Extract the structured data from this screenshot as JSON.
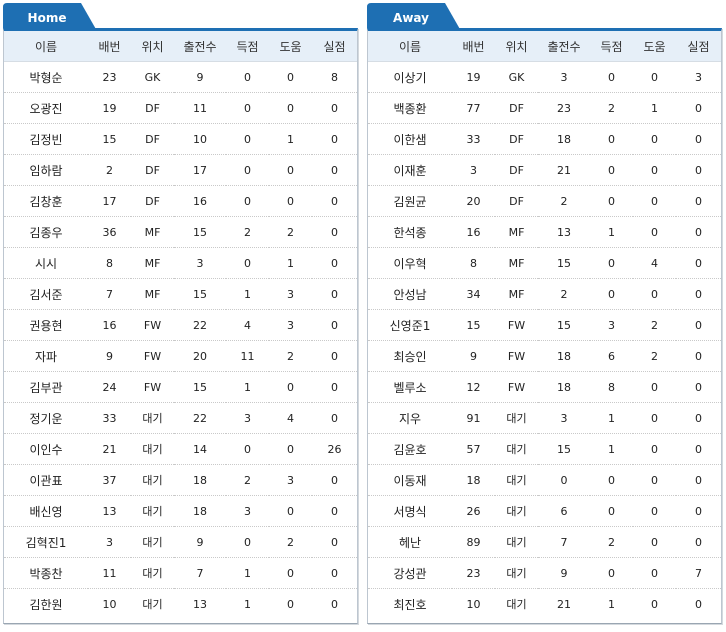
{
  "columns": [
    "이름",
    "배번",
    "위치",
    "출전수",
    "득점",
    "도움",
    "실점"
  ],
  "colors": {
    "tab_blue": "#1e6fb3",
    "header_bg": "#e6eff8"
  },
  "home": {
    "tab_label": "Home",
    "players": [
      [
        "박형순",
        "23",
        "GK",
        "9",
        "0",
        "0",
        "8"
      ],
      [
        "오광진",
        "19",
        "DF",
        "11",
        "0",
        "0",
        "0"
      ],
      [
        "김정빈",
        "15",
        "DF",
        "10",
        "0",
        "1",
        "0"
      ],
      [
        "임하람",
        "2",
        "DF",
        "17",
        "0",
        "0",
        "0"
      ],
      [
        "김창훈",
        "17",
        "DF",
        "16",
        "0",
        "0",
        "0"
      ],
      [
        "김종우",
        "36",
        "MF",
        "15",
        "2",
        "2",
        "0"
      ],
      [
        "시시",
        "8",
        "MF",
        "3",
        "0",
        "1",
        "0"
      ],
      [
        "김서준",
        "7",
        "MF",
        "15",
        "1",
        "3",
        "0"
      ],
      [
        "권용현",
        "16",
        "FW",
        "22",
        "4",
        "3",
        "0"
      ],
      [
        "자파",
        "9",
        "FW",
        "20",
        "11",
        "2",
        "0"
      ],
      [
        "김부관",
        "24",
        "FW",
        "15",
        "1",
        "0",
        "0"
      ],
      [
        "정기운",
        "33",
        "대기",
        "22",
        "3",
        "4",
        "0"
      ],
      [
        "이인수",
        "21",
        "대기",
        "14",
        "0",
        "0",
        "26"
      ],
      [
        "이관표",
        "37",
        "대기",
        "18",
        "2",
        "3",
        "0"
      ],
      [
        "배신영",
        "13",
        "대기",
        "18",
        "3",
        "0",
        "0"
      ],
      [
        "김혁진1",
        "3",
        "대기",
        "9",
        "0",
        "2",
        "0"
      ],
      [
        "박종찬",
        "11",
        "대기",
        "7",
        "1",
        "0",
        "0"
      ],
      [
        "김한원",
        "10",
        "대기",
        "13",
        "1",
        "0",
        "0"
      ]
    ]
  },
  "away": {
    "tab_label": "Away",
    "players": [
      [
        "이상기",
        "19",
        "GK",
        "3",
        "0",
        "0",
        "3"
      ],
      [
        "백종환",
        "77",
        "DF",
        "23",
        "2",
        "1",
        "0"
      ],
      [
        "이한샘",
        "33",
        "DF",
        "18",
        "0",
        "0",
        "0"
      ],
      [
        "이재훈",
        "3",
        "DF",
        "21",
        "0",
        "0",
        "0"
      ],
      [
        "김원균",
        "20",
        "DF",
        "2",
        "0",
        "0",
        "0"
      ],
      [
        "한석종",
        "16",
        "MF",
        "13",
        "1",
        "0",
        "0"
      ],
      [
        "이우혁",
        "8",
        "MF",
        "15",
        "0",
        "4",
        "0"
      ],
      [
        "안성남",
        "34",
        "MF",
        "2",
        "0",
        "0",
        "0"
      ],
      [
        "신영준1",
        "15",
        "FW",
        "15",
        "3",
        "2",
        "0"
      ],
      [
        "최승인",
        "9",
        "FW",
        "18",
        "6",
        "2",
        "0"
      ],
      [
        "벨루소",
        "12",
        "FW",
        "18",
        "8",
        "0",
        "0"
      ],
      [
        "지우",
        "91",
        "대기",
        "3",
        "1",
        "0",
        "0"
      ],
      [
        "김윤호",
        "57",
        "대기",
        "15",
        "1",
        "0",
        "0"
      ],
      [
        "이동재",
        "18",
        "대기",
        "0",
        "0",
        "0",
        "0"
      ],
      [
        "서명식",
        "26",
        "대기",
        "6",
        "0",
        "0",
        "0"
      ],
      [
        "헤난",
        "89",
        "대기",
        "7",
        "2",
        "0",
        "0"
      ],
      [
        "강성관",
        "23",
        "대기",
        "9",
        "0",
        "0",
        "7"
      ],
      [
        "최진호",
        "10",
        "대기",
        "21",
        "1",
        "0",
        "0"
      ]
    ]
  }
}
